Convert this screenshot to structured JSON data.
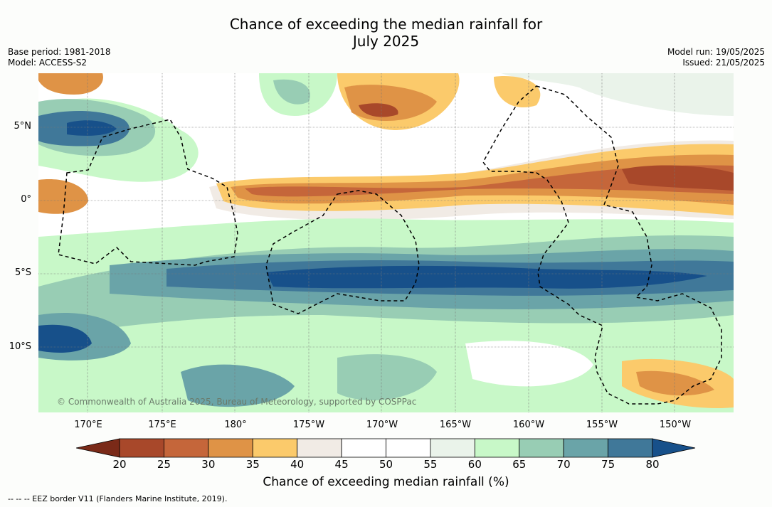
{
  "title_line1": "Chance of exceeding the median rainfall for",
  "title_line2": "July 2025",
  "base_period": "Base period: 1981-2018",
  "model": "Model: ACCESS-S2",
  "model_run": "Model run: 19/05/2025",
  "issued": "Issued: 21/05/2025",
  "lat_labels": [
    "5°N",
    "0°",
    "5°S",
    "10°S"
  ],
  "lon_labels": [
    "170°E",
    "175°E",
    "180°",
    "175°W",
    "170°W",
    "165°W",
    "160°W",
    "155°W",
    "150°W"
  ],
  "copyright": "© Commonwealth of Australia 2025, Bureau of Meteorology, supported by COSPPac",
  "colorbar": {
    "ticks": [
      "20",
      "25",
      "30",
      "35",
      "40",
      "45",
      "50",
      "55",
      "60",
      "65",
      "70",
      "75",
      "80"
    ],
    "colors": [
      "#a8482a",
      "#c5663a",
      "#df9346",
      "#fbca6b",
      "#f1ebe5",
      "#ffffff",
      "#ffffff",
      "#eaf3ea",
      "#c8f8c8",
      "#98cdb4",
      "#6aa4a8",
      "#407899",
      "#17508a"
    ],
    "label": "Chance of exceeding median rainfall (%)"
  },
  "footnote": "--  --  -- EEZ border V11 (Flanders Marine Institute, 2019)."
}
